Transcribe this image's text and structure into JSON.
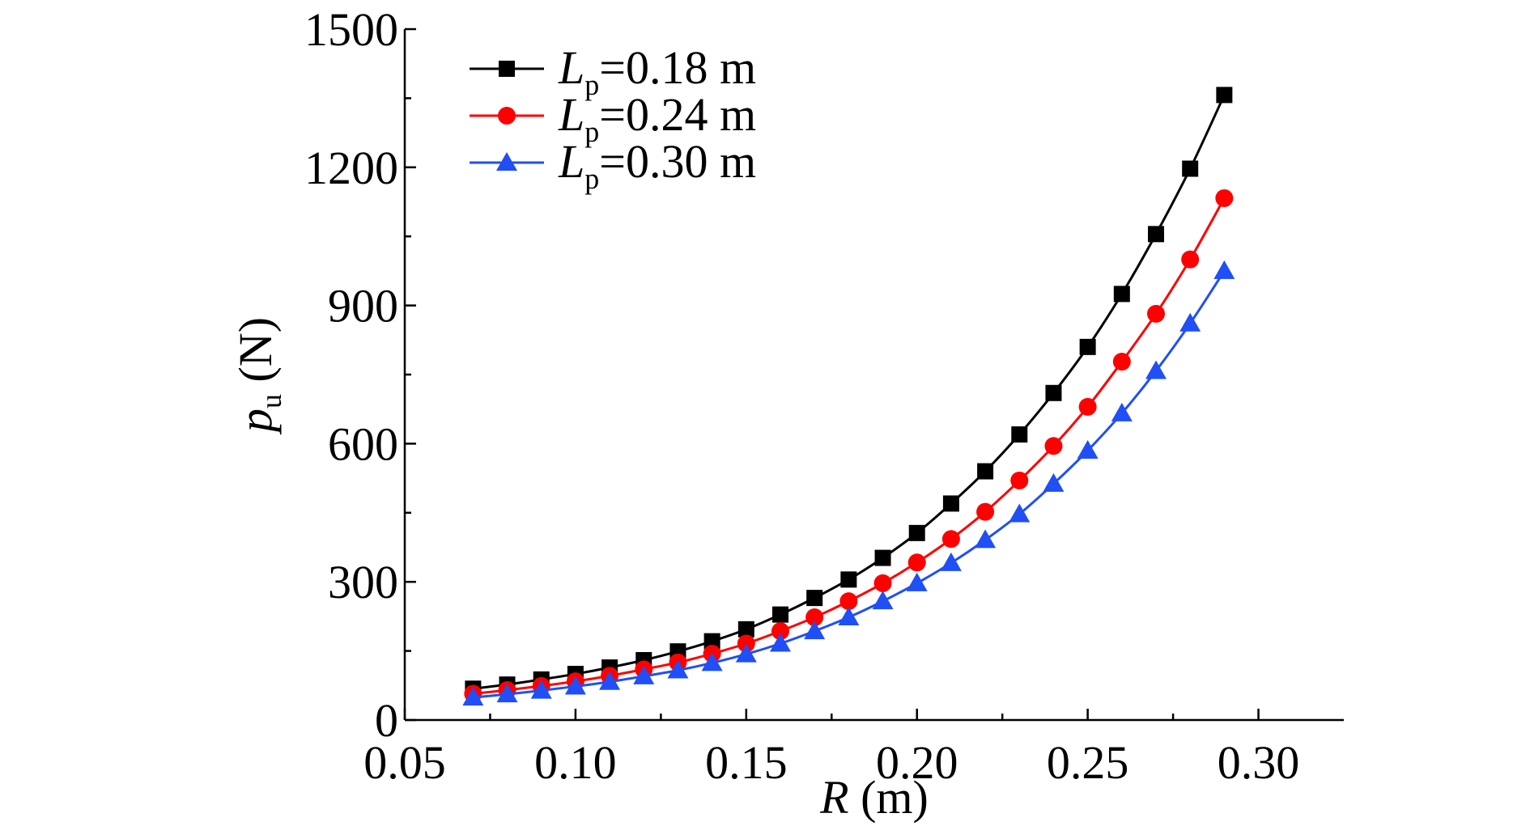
{
  "chart_data": {
    "type": "line",
    "xlabel": {
      "var": "R",
      "unit": " (m)"
    },
    "ylabel": {
      "var": "p",
      "sub": "u",
      "unit": " (N)"
    },
    "xlim": [
      0.05,
      0.325
    ],
    "ylim": [
      0,
      1500
    ],
    "xticks": [
      0.05,
      0.1,
      0.15,
      0.2,
      0.25,
      0.3
    ],
    "xtick_labels": [
      "0.05",
      "0.10",
      "0.15",
      "0.20",
      "0.25",
      "0.30"
    ],
    "yticks": [
      0,
      300,
      600,
      900,
      1200,
      1500
    ],
    "ytick_labels": [
      "0",
      "300",
      "600",
      "900",
      "1200",
      "1500"
    ],
    "x": [
      0.07,
      0.08,
      0.09,
      0.1,
      0.11,
      0.12,
      0.13,
      0.14,
      0.15,
      0.16,
      0.17,
      0.18,
      0.19,
      0.2,
      0.21,
      0.22,
      0.23,
      0.24,
      0.25,
      0.26,
      0.27,
      0.28,
      0.29
    ],
    "legend_position": "top-left",
    "series": [
      {
        "legend": {
          "var": "L",
          "sub": "p",
          "rest": "=0.18 m"
        },
        "color": "#000000",
        "marker": "square",
        "values": [
          68,
          77,
          88,
          100,
          114,
          130,
          149,
          171,
          197,
          229,
          265,
          305,
          352,
          406,
          470,
          540,
          620,
          710,
          810,
          925,
          1055,
          1197,
          1357
        ]
      },
      {
        "legend": {
          "var": "L",
          "sub": "p",
          "rest": "=0.24 m"
        },
        "color": "#ff0000",
        "marker": "circle",
        "values": [
          57,
          65,
          74,
          84,
          96,
          110,
          125,
          144,
          166,
          193,
          223,
          258,
          297,
          342,
          393,
          452,
          520,
          595,
          680,
          778,
          882,
          1000,
          1133
        ]
      },
      {
        "legend": {
          "var": "L",
          "sub": "p",
          "rest": "=0.30 m"
        },
        "color": "#1f4ff5",
        "marker": "triangle",
        "values": [
          49,
          56,
          64,
          73,
          83,
          95,
          108,
          124,
          143,
          166,
          193,
          223,
          258,
          297,
          341,
          391,
          447,
          513,
          585,
          666,
          758,
          861,
          975
        ]
      }
    ]
  }
}
